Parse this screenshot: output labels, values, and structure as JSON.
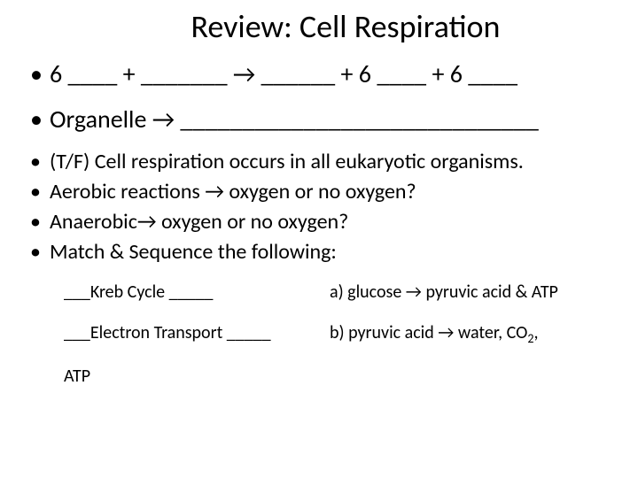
{
  "title": "Review: Cell Respiration",
  "bullets_level1": [
    "6 ____ + _______ → ______ + 6 ____ + 6 ____",
    "Organelle → _____________________________"
  ],
  "bullets_level2": [
    "(T/F) Cell respiration occurs in all eukaryotic organisms.",
    "Aerobic reactions → oxygen or no oxygen?",
    "Anaerobic→ oxygen or no oxygen?",
    "Match & Sequence the following:"
  ],
  "match": {
    "row1_left": "___Kreb Cycle _____",
    "row1_right": "a) glucose → pyruvic acid & ATP",
    "row2_left": "___Electron Transport _____",
    "row2_right_prefix": "b) pyruvic acid → water, CO",
    "row2_right_sub": "2",
    "row2_right_suffix": ","
  },
  "footer": "ATP",
  "style": {
    "title_fontsize": 36,
    "l1_fontsize": 28,
    "l2_fontsize": 24,
    "match_fontsize": 20,
    "text_color": "#000000",
    "background_color": "#ffffff"
  }
}
